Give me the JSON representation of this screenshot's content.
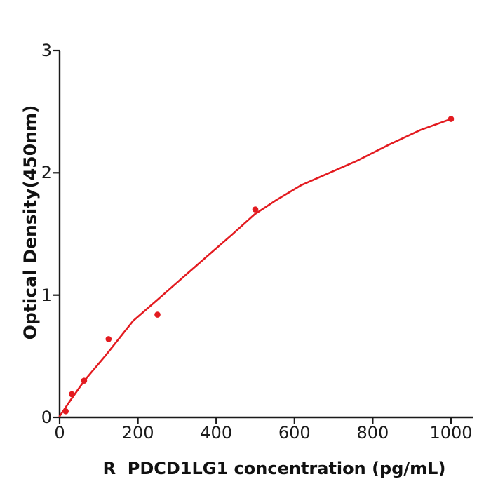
{
  "figure": {
    "background": "#ffffff",
    "axis_color": "#1a1a1a",
    "text_color": "#111111",
    "accent_color": "#e31b20"
  },
  "chart_data": {
    "type": "scatter",
    "title": "",
    "xlabel": "R  PDCD1LG1 concentration (pg/mL)",
    "ylabel": "Optical Density(450nm)",
    "x_ticks": [
      0,
      200,
      400,
      600,
      800,
      1000
    ],
    "x_tick_labels": [
      "0",
      "200",
      "400",
      "600",
      "800",
      "1000"
    ],
    "y_ticks": [
      0,
      1,
      2,
      3
    ],
    "y_tick_labels": [
      "0",
      "1",
      "2",
      "3"
    ],
    "xlim": [
      0,
      1055
    ],
    "ylim": [
      0,
      3
    ],
    "grid": false,
    "legend": "none",
    "series": [
      {
        "name": "Standard data points",
        "type": "scatter",
        "marker": "circle",
        "color": "#e31b20",
        "x": [
          15.6,
          31.2,
          62.5,
          125,
          250,
          500,
          1000
        ],
        "y": [
          0.05,
          0.19,
          0.3,
          0.64,
          0.84,
          1.7,
          2.44
        ]
      },
      {
        "name": "Fitted standard curve",
        "type": "line",
        "color": "#e31b20",
        "points": [
          [
            0,
            0.01
          ],
          [
            30,
            0.15
          ],
          [
            63,
            0.3
          ],
          [
            116,
            0.5
          ],
          [
            188,
            0.79
          ],
          [
            253,
            0.97
          ],
          [
            317,
            1.15
          ],
          [
            385,
            1.34
          ],
          [
            439,
            1.49
          ],
          [
            498,
            1.66
          ],
          [
            555,
            1.78
          ],
          [
            618,
            1.9
          ],
          [
            690,
            2.0
          ],
          [
            761,
            2.1
          ],
          [
            842,
            2.23
          ],
          [
            922,
            2.35
          ],
          [
            1000,
            2.44
          ]
        ]
      }
    ]
  }
}
